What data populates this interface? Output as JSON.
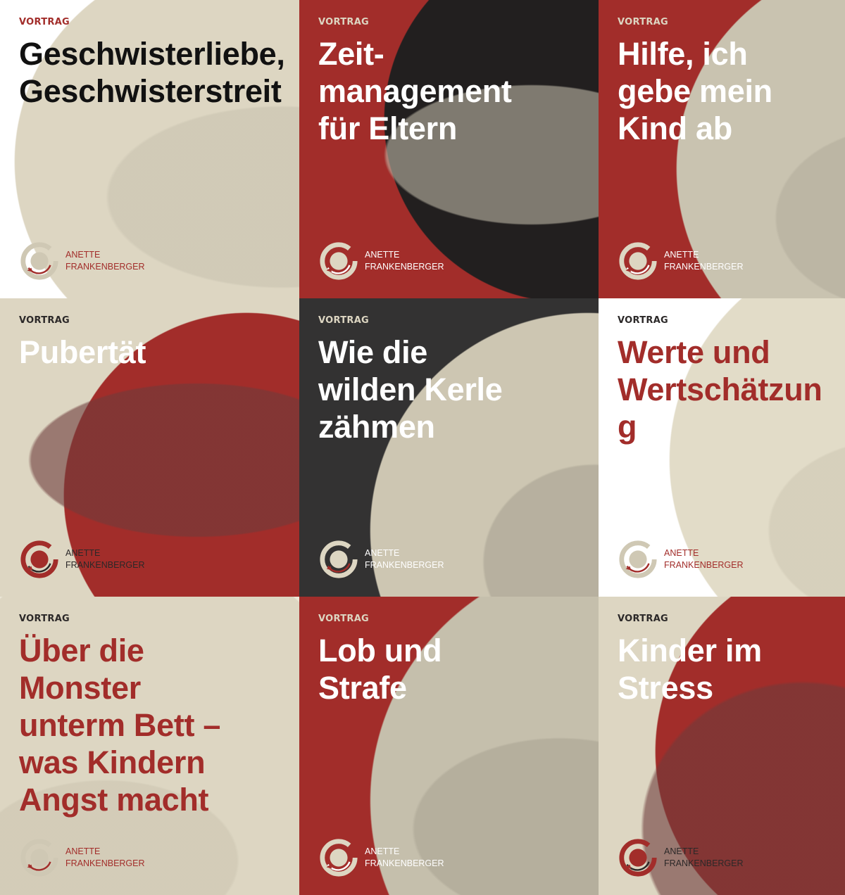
{
  "colors": {
    "red": "#a22d2a",
    "beige": "#ddd6c2",
    "dark": "#2b2828",
    "white": "#ffffff",
    "plum": "#6e3b3b",
    "grey": "#b8b2a2"
  },
  "logo": {
    "line1": "ANETTE",
    "line2": "FRANKENBERGER"
  },
  "tiles": [
    {
      "kicker": "VORTRAG",
      "title": "Geschwisterliebe,\nGeschwisterstreit",
      "bg": "#ffffff",
      "circle": "#ddd6c2",
      "wave": "#c9c3b0",
      "kickerColor": "#a22d2a",
      "titleColor": "#111111",
      "logoText": "#a22d2a",
      "ring": "#cfc8b4",
      "accent": "#a22d2a"
    },
    {
      "kicker": "VORTRAG",
      "title": "Zeit-\nmanagement\nfür Eltern",
      "bg": "#a22d2a",
      "circle": "#221f1f",
      "wave": "#bdb7a6",
      "kickerColor": "#ddd6c2",
      "titleColor": "#ffffff",
      "logoText": "#ffffff",
      "ring": "#ddd6c2",
      "accent": "#ffffff"
    },
    {
      "kicker": "VORTRAG",
      "title": "Hilfe, ich\ngebe mein\nKind ab",
      "bg": "#a22d2a",
      "circle": "#c9c3b0",
      "wave": "#b3ad9c",
      "kickerColor": "#ddd6c2",
      "titleColor": "#ffffff",
      "logoText": "#ffffff",
      "ring": "#ddd6c2",
      "accent": "#ffffff"
    },
    {
      "kicker": "VORTRAG",
      "title": "Pubertät",
      "bg": "#ddd6c2",
      "circle": "#a22d2a",
      "wave": "#6e3b3b",
      "kickerColor": "#2b2828",
      "titleColor": "#ffffff",
      "logoText": "#2b2828",
      "ring": "#a22d2a",
      "accent": "#2b2828"
    },
    {
      "kicker": "VORTRAG",
      "title": "Wie die\nwilden Kerle\nzähmen",
      "bg": "#333232",
      "circle": "#cdc6b2",
      "wave": "#a8a292",
      "kickerColor": "#ddd6c2",
      "titleColor": "#ffffff",
      "logoText": "#ffffff",
      "ring": "#ddd6c2",
      "accent": "#a22d2a"
    },
    {
      "kicker": "VORTRAG",
      "title": "Werte und\nWertschätzung",
      "bg": "#ffffff",
      "circle": "#e2dcc8",
      "wave": "#cfc8b4",
      "kickerColor": "#2b2828",
      "titleColor": "#a22d2a",
      "logoText": "#a22d2a",
      "ring": "#cfc8b4",
      "accent": "#a22d2a"
    },
    {
      "kicker": "VORTRAG",
      "title": "Über die\nMonster\nunterm Bett –\nwas Kindern\nAngst macht",
      "bg": "#ece7d8",
      "circle": "#ddd6c2",
      "wave": "#cdc6b2",
      "kickerColor": "#2b2828",
      "titleColor": "#a22d2a",
      "logoText": "#a22d2a",
      "ring": "#cfc8b4",
      "accent": "#a22d2a"
    },
    {
      "kicker": "VORTRAG",
      "title": "Lob und\nStrafe",
      "bg": "#a22d2a",
      "circle": "#c5bfac",
      "wave": "#aaa493",
      "kickerColor": "#ddd6c2",
      "titleColor": "#ffffff",
      "logoText": "#ffffff",
      "ring": "#ddd6c2",
      "accent": "#ffffff"
    },
    {
      "kicker": "VORTRAG",
      "title": "Kinder im\nStress",
      "bg": "#ddd6c2",
      "circle": "#a22d2a",
      "wave": "#6e3b3b",
      "kickerColor": "#2b2828",
      "titleColor": "#ffffff",
      "logoText": "#2b2828",
      "ring": "#a22d2a",
      "accent": "#2b2828"
    }
  ]
}
